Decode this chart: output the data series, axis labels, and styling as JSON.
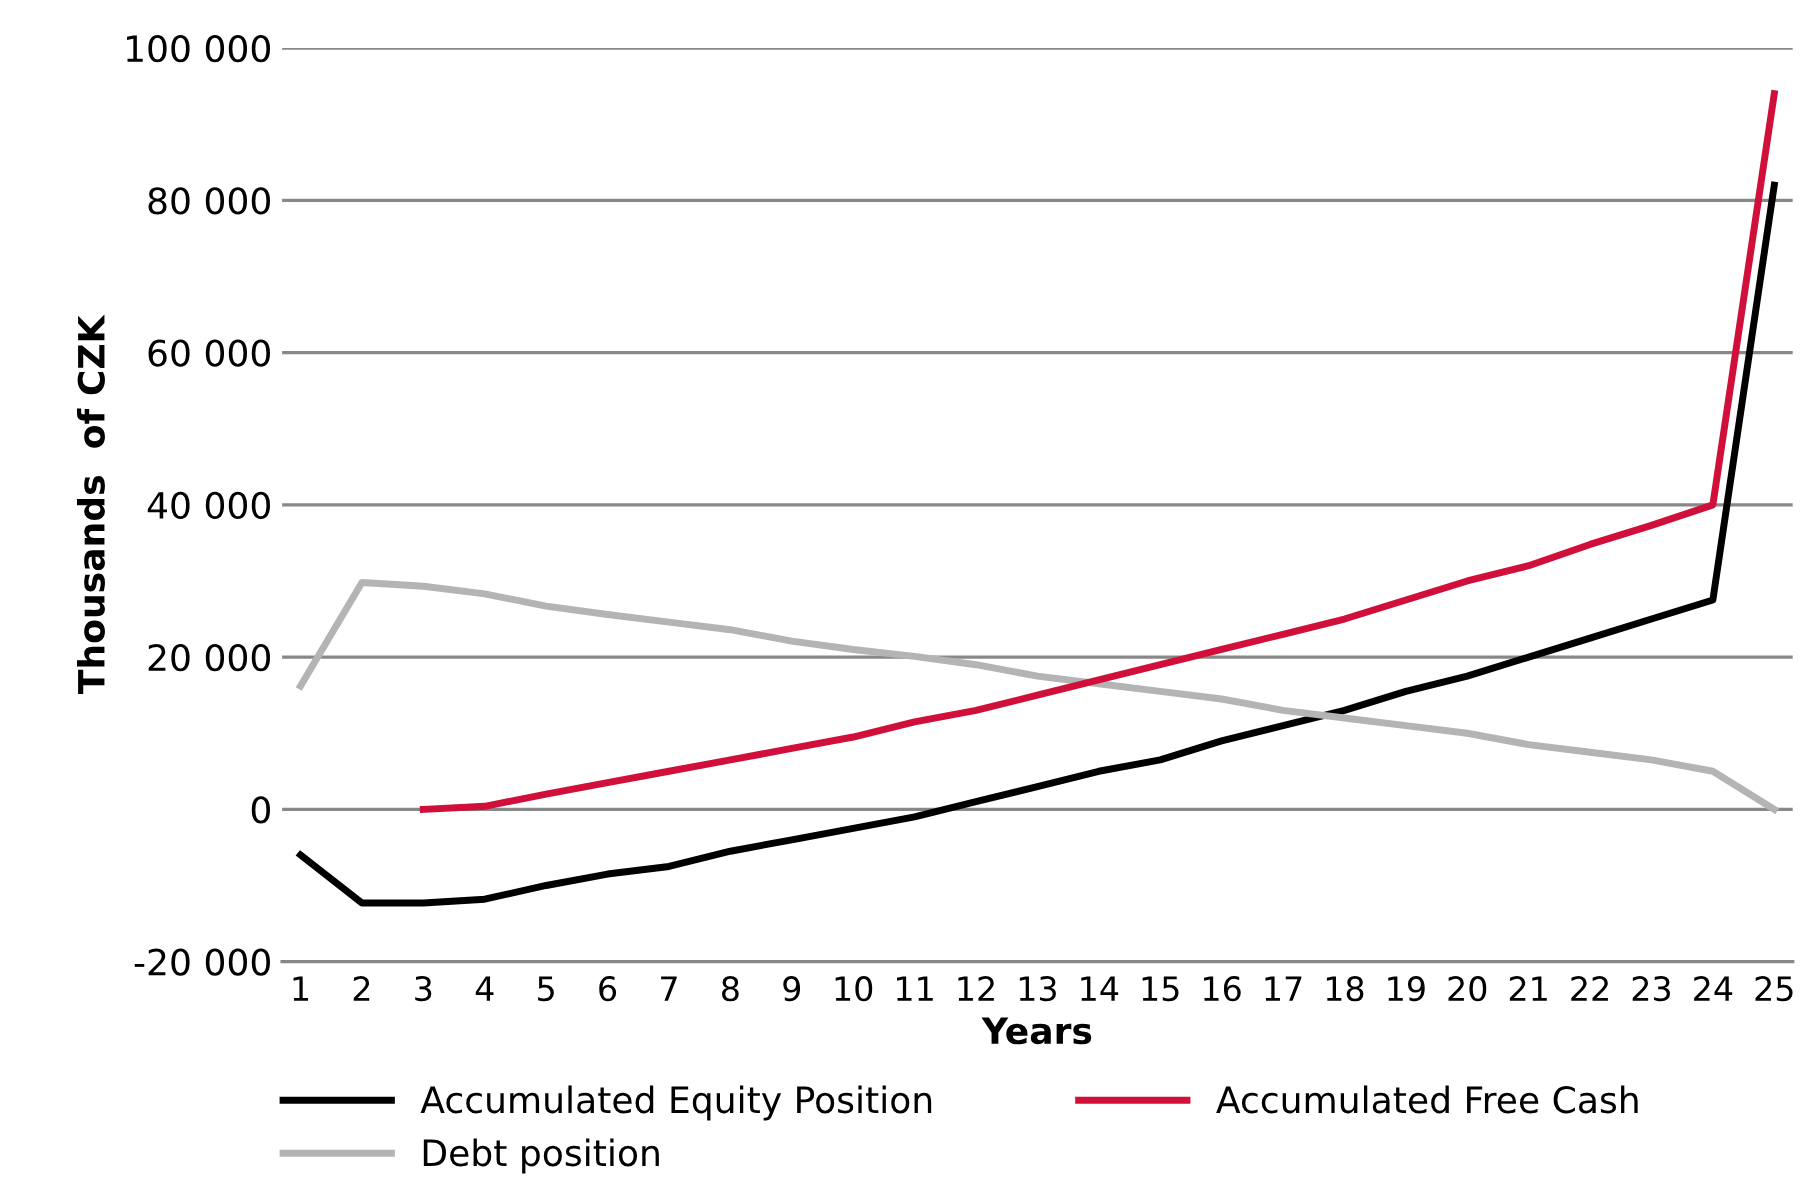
{
  "chart_data": {
    "type": "line",
    "xlabel": "Years",
    "ylabel": "Thousands  of CZK",
    "categories": [
      "1",
      "2",
      "3",
      "4",
      "5",
      "6",
      "7",
      "8",
      "9",
      "10",
      "11",
      "12",
      "13",
      "14",
      "15",
      "16",
      "17",
      "18",
      "19",
      "20",
      "21",
      "22",
      "23",
      "24",
      "25"
    ],
    "series": [
      {
        "name": "Accumulated Equity Position",
        "color": "#000000",
        "values": [
          -6000,
          -12300,
          -12300,
          -11800,
          -10000,
          -8500,
          -7500,
          -5500,
          -4000,
          -2500,
          -1000,
          1000,
          3000,
          5000,
          6500,
          9000,
          11000,
          13000,
          15500,
          17500,
          20000,
          22500,
          25000,
          27500,
          82000
        ]
      },
      {
        "name": "Debt position",
        "color": "#b4b4b4",
        "values": [
          16200,
          29800,
          29300,
          28300,
          26700,
          25600,
          24600,
          23600,
          22100,
          21000,
          20100,
          19000,
          17500,
          16500,
          15500,
          14500,
          13000,
          12000,
          11000,
          10000,
          8500,
          7500,
          6500,
          5000,
          0
        ]
      },
      {
        "name": "Accumulated Free Cash",
        "color": "#d0103a",
        "values": [
          null,
          null,
          0,
          400,
          2000,
          3500,
          5000,
          6500,
          8000,
          9500,
          11500,
          13000,
          15000,
          17000,
          19000,
          21000,
          23000,
          25000,
          27500,
          30000,
          32000,
          34800,
          37300,
          40000,
          94000
        ]
      }
    ],
    "ylim": [
      -20000,
      100000
    ],
    "yticks": [
      {
        "value": -20000,
        "label": "-20 000"
      },
      {
        "value": 0,
        "label": "0"
      },
      {
        "value": 20000,
        "label": "20 000"
      },
      {
        "value": 40000,
        "label": "40 000"
      },
      {
        "value": 60000,
        "label": "60 000"
      },
      {
        "value": 80000,
        "label": "80 000"
      },
      {
        "value": 100000,
        "label": "100 000"
      }
    ],
    "grid": "y",
    "legend": "bottom",
    "marker": "none",
    "line_style": "solid"
  }
}
